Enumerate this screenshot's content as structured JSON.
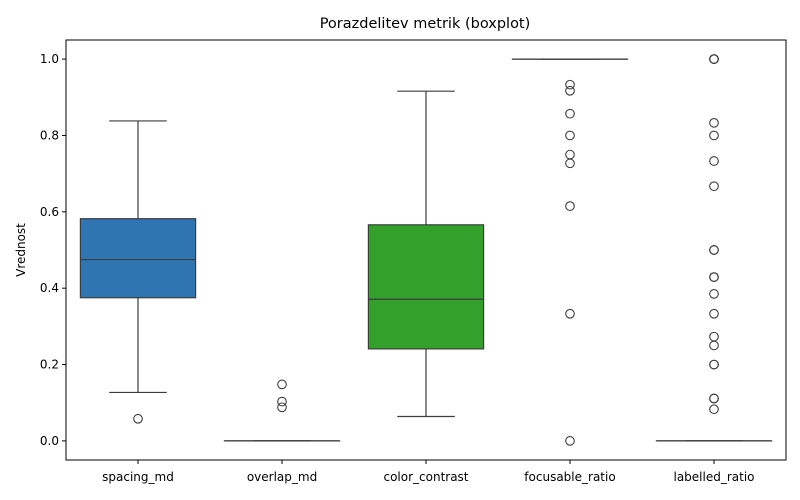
{
  "chart_data": {
    "type": "boxplot",
    "title": "Porazdelitev metrik (boxplot)",
    "xlabel": "",
    "ylabel": "Vrednost",
    "ylim": [
      -0.05,
      1.05
    ],
    "yticks": [
      0.0,
      0.2,
      0.4,
      0.6,
      0.8,
      1.0
    ],
    "ytick_labels": [
      "0.0",
      "0.2",
      "0.4",
      "0.6",
      "0.8",
      "1.0"
    ],
    "grid": false,
    "categories": [
      "spacing_md",
      "overlap_md",
      "color_contrast",
      "focusable_ratio",
      "labelled_ratio"
    ],
    "boxes": [
      {
        "name": "spacing_md",
        "color": "#2f75b1",
        "whislo": 0.127,
        "q1": 0.375,
        "med": 0.475,
        "q3": 0.582,
        "whishi": 0.838,
        "fliers": [
          0.058
        ]
      },
      {
        "name": "overlap_md",
        "color": "#f28e2b",
        "whislo": 0.0,
        "q1": 0.0,
        "med": 0.0,
        "q3": 0.0,
        "whishi": 0.0,
        "fliers": [
          0.148,
          0.103,
          0.088
        ]
      },
      {
        "name": "color_contrast",
        "color": "#33a02c",
        "whislo": 0.064,
        "q1": 0.241,
        "med": 0.371,
        "q3": 0.566,
        "whishi": 0.916,
        "fliers": []
      },
      {
        "name": "focusable_ratio",
        "color": "#d62728",
        "whislo": 1.0,
        "q1": 1.0,
        "med": 1.0,
        "q3": 1.0,
        "whishi": 1.0,
        "fliers": [
          0.933,
          0.917,
          0.857,
          0.8,
          0.75,
          0.727,
          0.615,
          0.333,
          0.0
        ]
      },
      {
        "name": "labelled_ratio",
        "color": "#9467bd",
        "whislo": 0.0,
        "q1": 0.0,
        "med": 0.0,
        "q3": 0.0,
        "whishi": 0.0,
        "fliers": [
          1.0,
          1.0,
          1.0,
          0.833,
          0.8,
          0.733,
          0.667,
          0.5,
          0.5,
          0.429,
          0.429,
          0.385,
          0.333,
          0.273,
          0.25,
          0.2,
          0.2,
          0.111,
          0.111,
          0.083
        ]
      }
    ]
  }
}
